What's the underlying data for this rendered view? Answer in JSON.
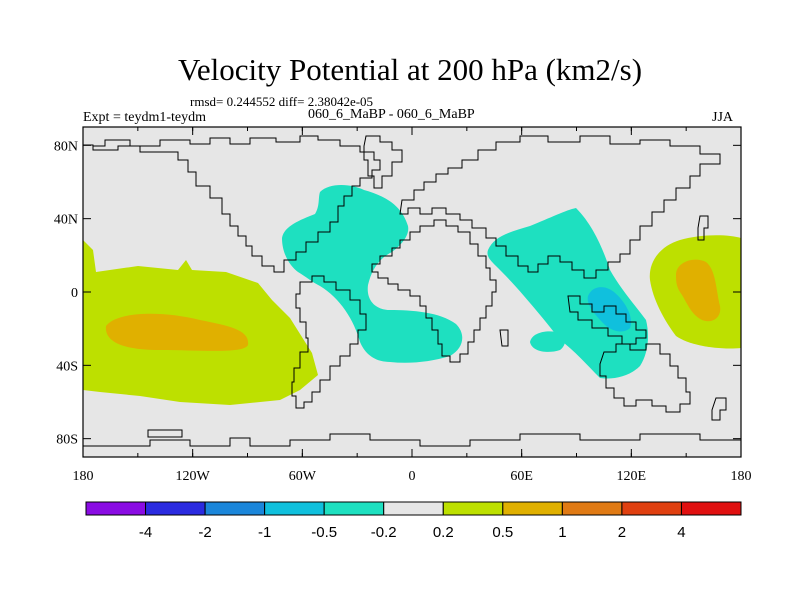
{
  "title": "Velocity Potential at 200 hPa (km2/s)",
  "stats": "rmsd= 0.244552 diff= 2.38042e-05",
  "expt": "Expt = teydm1-teydm",
  "case_id": "060_6_MaBP - 060_6_MaBP",
  "season": "JJA",
  "chart_data": {
    "type": "contour-map",
    "variable": "Velocity Potential",
    "level": "200 hPa",
    "units": "km2/s",
    "x_ticks": [
      "180",
      "120W",
      "60W",
      "0",
      "60E",
      "120E",
      "180"
    ],
    "y_ticks": [
      "80N",
      "40N",
      "0",
      "40S",
      "80S"
    ],
    "colorbar": {
      "labels": [
        "-4",
        "-2",
        "-1",
        "-0.5",
        "-0.2",
        "0.2",
        "0.5",
        "1",
        "2",
        "4"
      ],
      "colors": [
        "#8a0ce3",
        "#2b2be0",
        "#1b86da",
        "#10c0dd",
        "#1ee0c0",
        "#e6e6e6",
        "#bde000",
        "#e0b000",
        "#e07a14",
        "#e04010",
        "#e01010"
      ]
    },
    "features": [
      {
        "name": "Pacific positive anomaly (central/eastern)",
        "class": "0.2 to 0.5",
        "peak_class": "0.5 to 1"
      },
      {
        "name": "Western Pacific positive anomaly",
        "class": "0.2 to 0.5",
        "peak_class": "0.5 to 1"
      },
      {
        "name": "Atlantic / Africa negative anomaly",
        "class": "-0.5 to -0.2"
      },
      {
        "name": "Indian Ocean / Maritime Continent negative anomaly",
        "class": "-0.5 to -0.2",
        "peak_class": "-1 to -0.5"
      }
    ]
  }
}
